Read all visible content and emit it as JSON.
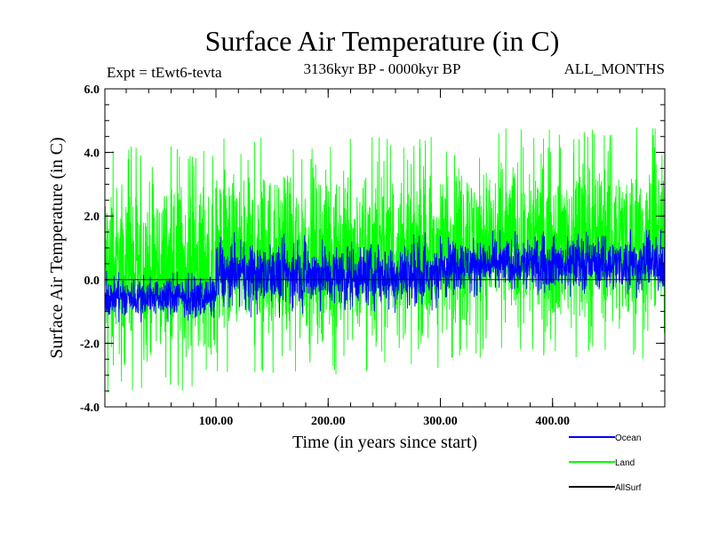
{
  "chart_data": {
    "type": "line",
    "title": "Surface Air Temperature (in C)",
    "subtitle": "3136kyr BP - 0000kyr BP",
    "annotation_left": "Expt = tEwt6-tevta",
    "annotation_right": "ALL_MONTHS",
    "xlabel": "Time (in years since start)",
    "ylabel": "Surface Air Temperature (in C)",
    "xlim": [
      1,
      500
    ],
    "ylim": [
      -4.0,
      6.0
    ],
    "xticks": [
      100,
      200,
      300,
      400
    ],
    "xtick_labels": [
      "100.00",
      "200.00",
      "300.00",
      "400.00"
    ],
    "yticks": [
      -4,
      -2,
      0,
      2,
      4,
      6
    ],
    "ytick_labels": [
      "-4.0",
      "-2.0",
      "0.0",
      "2.0",
      "4.0",
      "6.0"
    ],
    "zero_line": 0,
    "series": [
      {
        "name": "Land",
        "color": "#00ff00",
        "segments": [
          {
            "x_range": [
              1,
              100
            ],
            "mean": 0.1,
            "low": -3.6,
            "high": 4.2
          },
          {
            "x_range": [
              100,
              300
            ],
            "mean": 1.2,
            "low": -3.0,
            "high": 4.5
          },
          {
            "x_range": [
              300,
              500
            ],
            "mean": 1.5,
            "low": -2.5,
            "high": 4.8
          }
        ]
      },
      {
        "name": "Ocean",
        "color": "#0000ff",
        "segments": [
          {
            "x_range": [
              1,
              100
            ],
            "mean": -0.5,
            "low": -1.4,
            "high": 0.3
          },
          {
            "x_range": [
              100,
              300
            ],
            "mean": 0.3,
            "low": -1.2,
            "high": 1.5
          },
          {
            "x_range": [
              300,
              500
            ],
            "mean": 0.6,
            "low": -0.6,
            "high": 1.6
          }
        ]
      },
      {
        "name": "AllSurf",
        "color": "#000000",
        "segments": []
      }
    ],
    "legend": [
      "Ocean",
      "Land",
      "AllSurf"
    ],
    "legend_position": "bottom-right"
  }
}
